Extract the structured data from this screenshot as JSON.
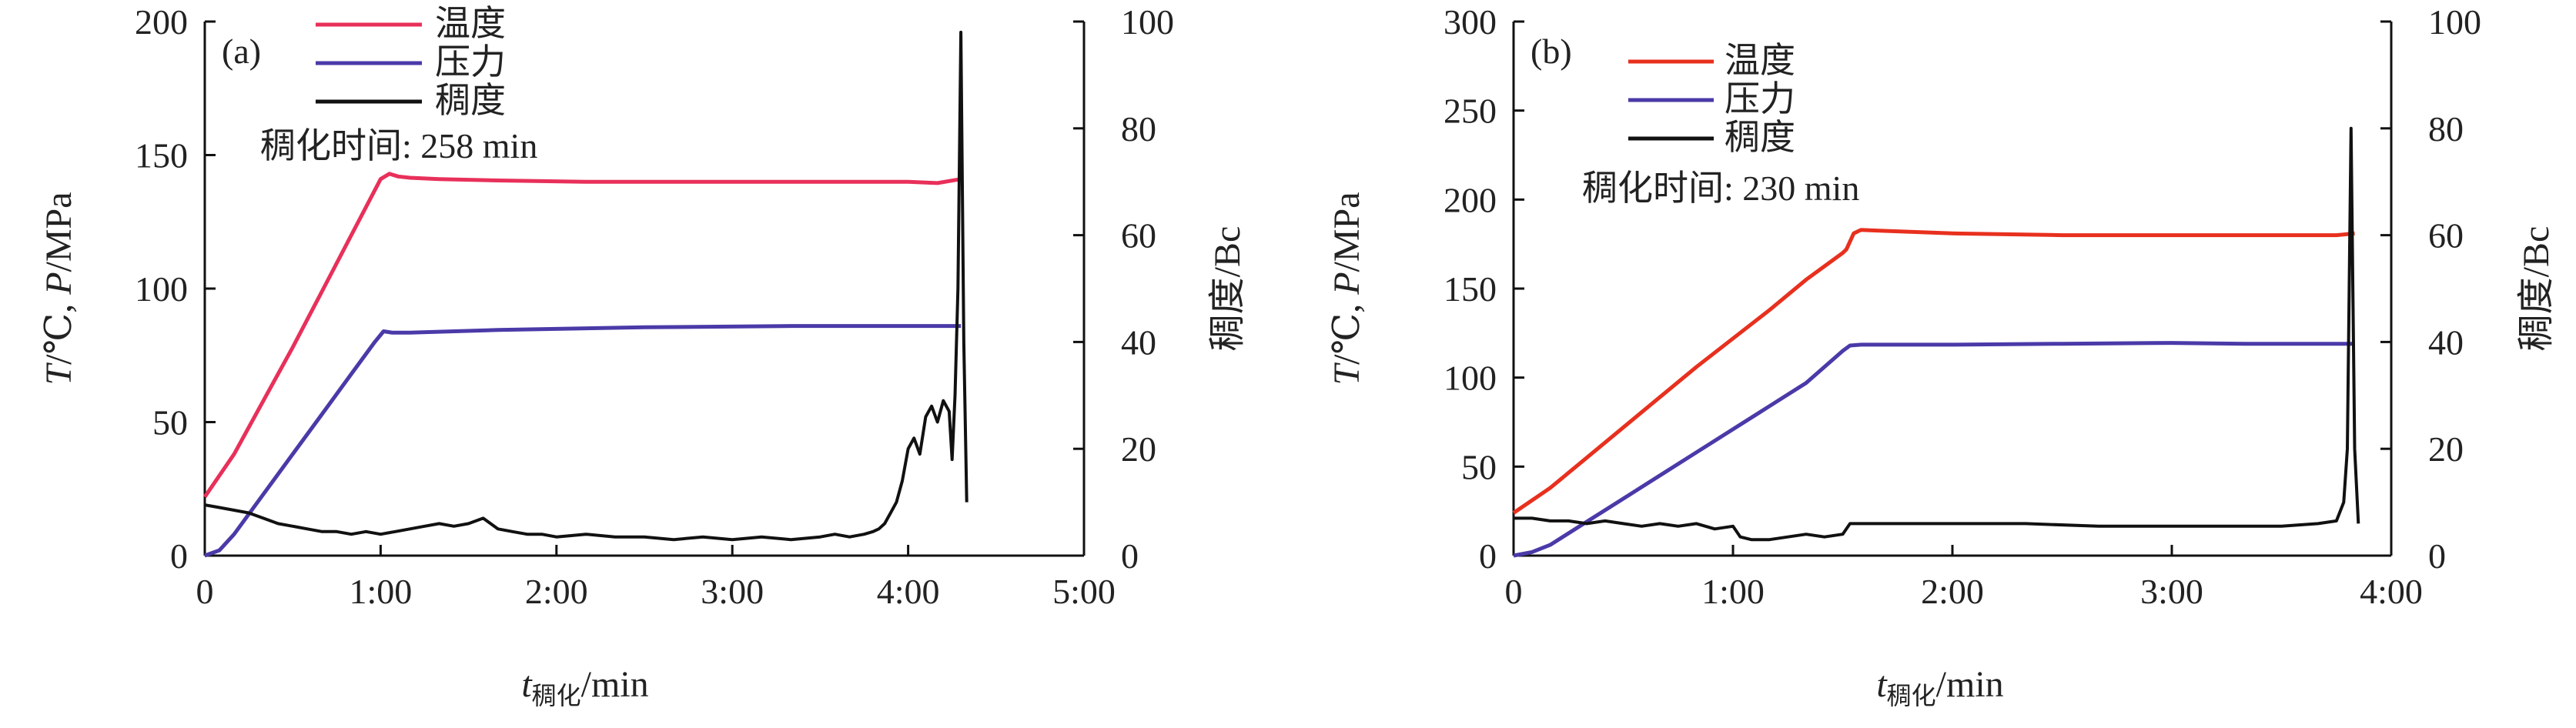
{
  "chart_data": [
    {
      "type": "line",
      "panel_label": "(a)",
      "annotation": "稠化时间: 258 min",
      "xlabel": {
        "italic": "t",
        "sub": "稠化",
        "rest": "/min"
      },
      "ylabel_left": {
        "italic1": "T",
        "unit1": "/℃, ",
        "italic2": "P",
        "unit2": "/MPa"
      },
      "ylabel_right": "稠度/Bc",
      "x_unit": "min",
      "xlim": [
        0,
        300
      ],
      "ylim_left": [
        0,
        200
      ],
      "ylim_right": [
        0,
        100
      ],
      "x_ticks": [
        0,
        60,
        120,
        180,
        240,
        300
      ],
      "x_tick_labels": [
        "0",
        "1:00",
        "2:00",
        "3:00",
        "4:00",
        "5:00"
      ],
      "y_left_ticks": [
        0,
        50,
        100,
        150,
        200
      ],
      "y_left_tick_labels": [
        "0",
        "50",
        "100",
        "150",
        "200"
      ],
      "y_right_ticks": [
        0,
        20,
        40,
        60,
        80,
        100
      ],
      "y_right_tick_labels": [
        "0",
        "20",
        "40",
        "60",
        "80",
        "100"
      ],
      "legend_placement": "top-center",
      "grid": false,
      "series": [
        {
          "name": "温度",
          "axis": "left",
          "color": "#e8305a",
          "x": [
            0,
            10,
            20,
            30,
            40,
            50,
            60,
            63,
            66,
            70,
            80,
            100,
            130,
            160,
            190,
            220,
            240,
            250,
            258
          ],
          "y": [
            22,
            38,
            58,
            78,
            99,
            120,
            141,
            143,
            142,
            141.5,
            141,
            140.5,
            140,
            140,
            140,
            140,
            140,
            139.5,
            141
          ]
        },
        {
          "name": "压力",
          "axis": "left",
          "color": "#4a3aa8",
          "x": [
            0,
            5,
            10,
            20,
            30,
            40,
            50,
            58,
            61,
            64,
            70,
            100,
            150,
            200,
            240,
            258
          ],
          "y": [
            0,
            2,
            8,
            23,
            38,
            53,
            68,
            80,
            84,
            83.5,
            83.5,
            84.5,
            85.5,
            86,
            86,
            86
          ]
        },
        {
          "name": "稠度",
          "axis": "right",
          "color": "#111111",
          "x": [
            0,
            5,
            10,
            15,
            20,
            25,
            30,
            35,
            40,
            45,
            50,
            55,
            60,
            65,
            70,
            75,
            80,
            85,
            90,
            95,
            100,
            105,
            110,
            115,
            120,
            130,
            140,
            150,
            160,
            170,
            180,
            190,
            200,
            210,
            215,
            220,
            225,
            228,
            230,
            232,
            234,
            236,
            238,
            240,
            242,
            244,
            246,
            248,
            250,
            252,
            254,
            255,
            256,
            257,
            258,
            259,
            260
          ],
          "y": [
            9.5,
            9,
            8.5,
            8,
            7,
            6,
            5.5,
            5,
            4.5,
            4.5,
            4,
            4.5,
            4,
            4.5,
            5,
            5.5,
            6,
            5.5,
            6,
            7,
            5,
            4.5,
            4,
            4,
            3.5,
            4,
            3.5,
            3.5,
            3,
            3.5,
            3,
            3.5,
            3,
            3.5,
            4,
            3.5,
            4,
            4.5,
            5,
            6,
            8,
            10,
            14,
            20,
            22,
            19,
            26,
            28,
            25,
            29,
            27,
            18,
            30,
            50,
            98,
            40,
            10
          ]
        }
      ]
    },
    {
      "type": "line",
      "panel_label": "(b)",
      "annotation": "稠化时间: 230 min",
      "xlabel": {
        "italic": "t",
        "sub": "稠化",
        "rest": "/min"
      },
      "ylabel_left": {
        "italic1": "T",
        "unit1": "/℃, ",
        "italic2": "P",
        "unit2": "/MPa"
      },
      "ylabel_right": "稠度/Bc",
      "x_unit": "min",
      "xlim": [
        0,
        240
      ],
      "ylim_left": [
        0,
        300
      ],
      "ylim_right": [
        0,
        100
      ],
      "x_ticks": [
        0,
        60,
        120,
        180,
        240
      ],
      "x_tick_labels": [
        "0",
        "1:00",
        "2:00",
        "3:00",
        "4:00"
      ],
      "y_left_ticks": [
        0,
        50,
        100,
        150,
        200,
        250,
        300
      ],
      "y_left_tick_labels": [
        "0",
        "50",
        "100",
        "150",
        "200",
        "250",
        "300"
      ],
      "y_right_ticks": [
        0,
        20,
        40,
        60,
        80,
        100
      ],
      "y_right_tick_labels": [
        "0",
        "20",
        "40",
        "60",
        "80",
        "100"
      ],
      "legend_placement": "top-center",
      "grid": false,
      "series": [
        {
          "name": "温度",
          "axis": "left",
          "color": "#e8301e",
          "x": [
            0,
            10,
            20,
            30,
            40,
            50,
            60,
            70,
            80,
            90,
            91,
            93,
            95,
            100,
            120,
            150,
            180,
            200,
            215,
            225,
            230
          ],
          "y": [
            24,
            38,
            55,
            72,
            89,
            106,
            122,
            138,
            155,
            170,
            172,
            181,
            183,
            182.5,
            181,
            180,
            180,
            180,
            180,
            180,
            181
          ]
        },
        {
          "name": "压力",
          "axis": "left",
          "color": "#4a3aa8",
          "x": [
            0,
            5,
            10,
            20,
            30,
            40,
            50,
            60,
            70,
            80,
            90,
            92,
            95,
            120,
            150,
            180,
            200,
            220,
            230
          ],
          "y": [
            0,
            2,
            6,
            19,
            32,
            45,
            58,
            71,
            84,
            97,
            115,
            118,
            118.5,
            118.5,
            119,
            119.5,
            119,
            119,
            119
          ]
        },
        {
          "name": "稠度",
          "axis": "right",
          "color": "#111111",
          "x": [
            0,
            5,
            10,
            15,
            20,
            25,
            30,
            35,
            40,
            45,
            50,
            55,
            60,
            62,
            65,
            70,
            75,
            80,
            85,
            90,
            92,
            95,
            100,
            120,
            140,
            160,
            180,
            200,
            210,
            220,
            225,
            227,
            228,
            229,
            230,
            231
          ],
          "y": [
            7,
            7,
            6.5,
            6.5,
            6,
            6.5,
            6,
            5.5,
            6,
            5.5,
            6,
            5,
            5.5,
            3.5,
            3,
            3,
            3.5,
            4,
            3.5,
            4,
            6,
            6,
            6,
            6,
            6,
            5.5,
            5.5,
            5.5,
            5.5,
            6,
            6.5,
            10,
            20,
            80,
            20,
            6
          ]
        }
      ]
    }
  ]
}
